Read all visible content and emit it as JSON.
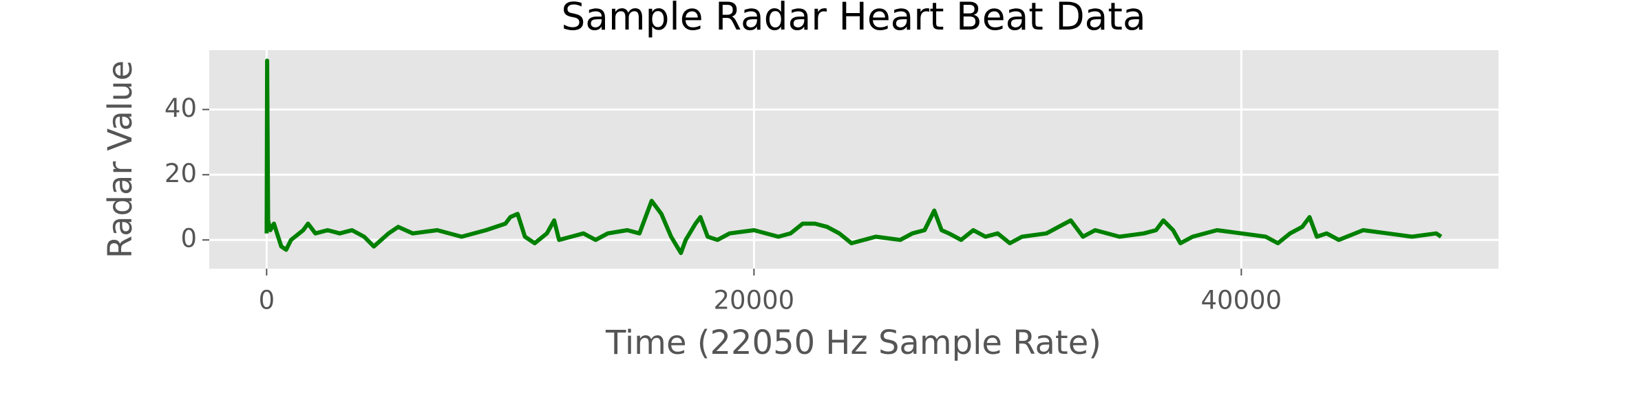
{
  "chart_data": {
    "type": "line",
    "title": "Sample Radar Heart Beat Data",
    "xlabel": "Time (22050 Hz Sample Rate)",
    "ylabel": "Radar Value",
    "color": "#008000",
    "grid": true,
    "xlim": [
      -2355,
      50555
    ],
    "ylim": [
      -8.8,
      58.2
    ],
    "xticks": [
      0,
      20000,
      40000
    ],
    "yticks": [
      0,
      20,
      40
    ],
    "x": [
      0,
      20,
      60,
      150,
      300,
      600,
      800,
      1000,
      1500,
      1700,
      2000,
      2500,
      3000,
      3500,
      4000,
      4400,
      5000,
      5400,
      6000,
      7000,
      8000,
      9000,
      9800,
      10000,
      10300,
      10600,
      11000,
      11500,
      11800,
      12000,
      12500,
      13000,
      13500,
      14000,
      14800,
      15300,
      15600,
      15800,
      16200,
      16600,
      17000,
      17200,
      17600,
      17800,
      18100,
      18500,
      19000,
      20000,
      21000,
      21500,
      22000,
      22500,
      23000,
      23500,
      24000,
      25000,
      26000,
      26500,
      27000,
      27400,
      27700,
      28000,
      28500,
      29000,
      29500,
      30000,
      30500,
      31000,
      32000,
      32500,
      33000,
      33500,
      34000,
      35000,
      36000,
      36500,
      36800,
      37200,
      37500,
      38000,
      39000,
      40000,
      41000,
      41500,
      42000,
      42500,
      42800,
      43100,
      43500,
      44000,
      45000,
      46000,
      47000,
      48000,
      48200
    ],
    "values": [
      2,
      55,
      6,
      3,
      5,
      -2,
      -3,
      0,
      3,
      5,
      2,
      3,
      2,
      3,
      1,
      -2,
      2,
      4,
      2,
      3,
      1,
      3,
      5,
      7,
      8,
      1,
      -1,
      2,
      6,
      0,
      1,
      2,
      0,
      2,
      3,
      2,
      8,
      12,
      8,
      1,
      -4,
      0,
      5,
      7,
      1,
      0,
      2,
      3,
      1,
      2,
      5,
      5,
      4,
      2,
      -1,
      1,
      0,
      2,
      3,
      9,
      3,
      2,
      0,
      3,
      1,
      2,
      -1,
      1,
      2,
      4,
      6,
      1,
      3,
      1,
      2,
      3,
      6,
      3,
      -1,
      1,
      3,
      2,
      1,
      -1,
      2,
      4,
      7,
      1,
      2,
      0,
      3,
      2,
      1,
      2,
      1
    ]
  }
}
